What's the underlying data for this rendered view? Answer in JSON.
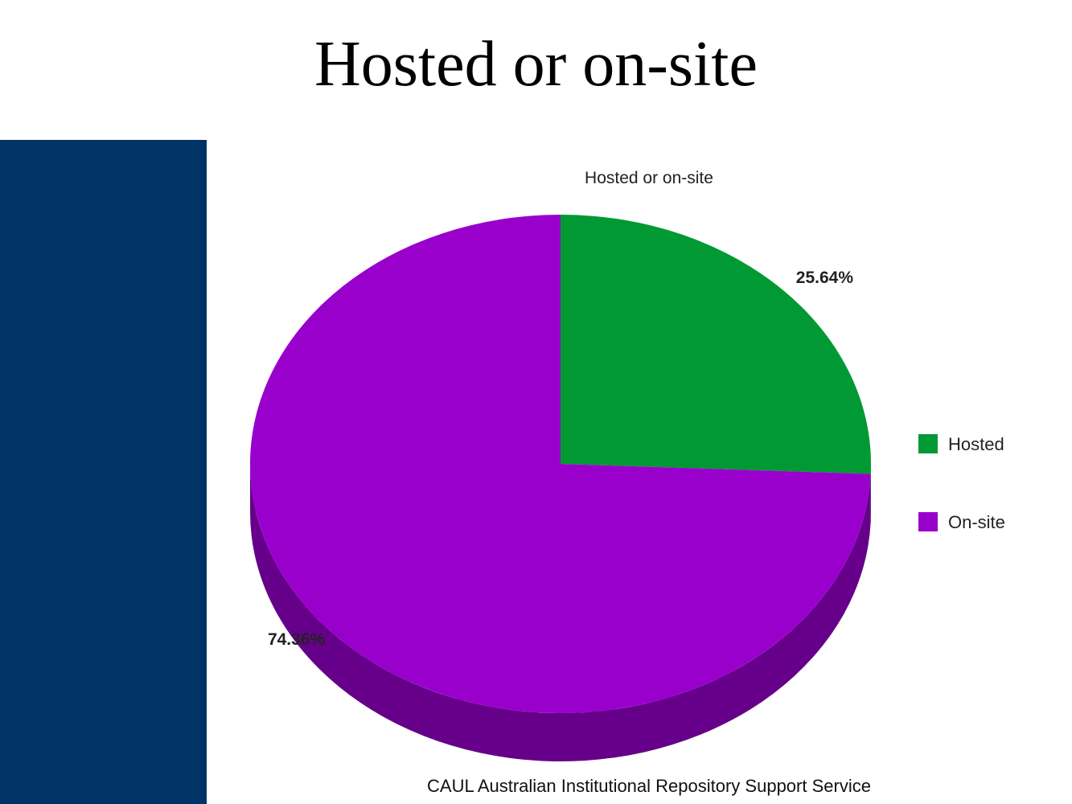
{
  "slide": {
    "title": "Hosted or on-site",
    "sidebar_color": "#003366"
  },
  "chart_data": {
    "type": "pie",
    "style": "3d",
    "title": "Hosted or on-site",
    "categories": [
      "Hosted",
      "On-site"
    ],
    "values": [
      25.64,
      74.36
    ],
    "labels": [
      "25.64%",
      "74.36%"
    ],
    "colors": [
      "#009933",
      "#9900cc"
    ],
    "side_colors": [
      "#006622",
      "#66008a"
    ],
    "legend_position": "right",
    "caption": "CAUL Australian Institutional Repository Support Service"
  }
}
